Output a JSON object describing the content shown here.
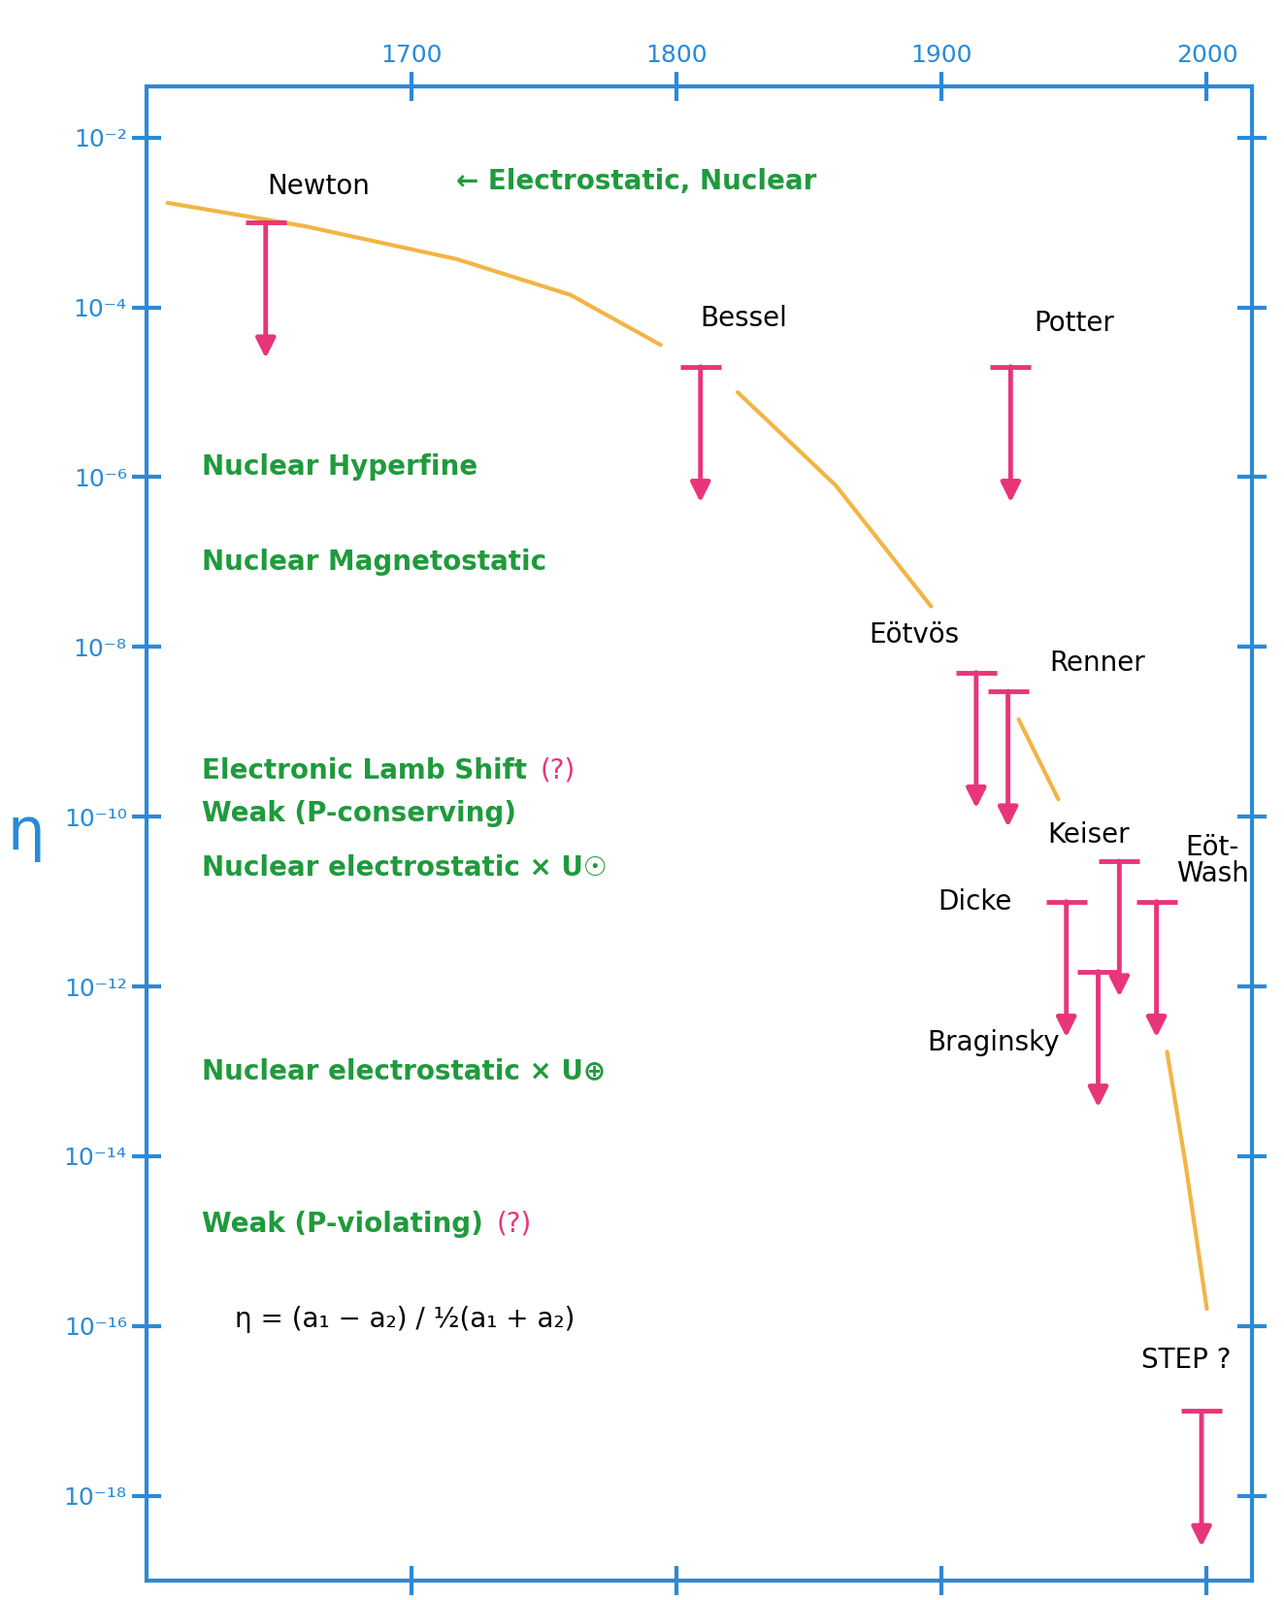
{
  "chart_data": {
    "type": "scatter",
    "marker": "upper_limit",
    "log": "y",
    "grid": false,
    "ylabel": "η",
    "xlim": [
      1600,
      2017
    ],
    "xticks": [
      1700,
      1800,
      1900,
      2000
    ],
    "ylim": [
      1e-19,
      0.04
    ],
    "yticks": [
      {
        "value": 0.01,
        "label": "10⁻²"
      },
      {
        "value": 0.0001,
        "label": "10⁻⁴"
      },
      {
        "value": 1e-06,
        "label": "10⁻⁶"
      },
      {
        "value": 1e-08,
        "label": "10⁻⁸"
      },
      {
        "value": 1e-10,
        "label": "10⁻¹⁰"
      },
      {
        "value": 1e-12,
        "label": "10⁻¹²"
      },
      {
        "value": 1e-14,
        "label": "10⁻¹⁴"
      },
      {
        "value": 1e-16,
        "label": "10⁻¹⁶"
      },
      {
        "value": 1e-18,
        "label": "10⁻¹⁸"
      }
    ],
    "color": "#e8357a",
    "experiments": [
      {
        "label": "Newton",
        "x": 1645,
        "value": 0.001
      },
      {
        "label": "Bessel",
        "x": 1809,
        "value": 2e-05
      },
      {
        "label": "Potter",
        "x": 1926,
        "value": 2e-05
      },
      {
        "label": "Eötvös",
        "x": 1913,
        "value": 5e-09
      },
      {
        "label": "Renner",
        "x": 1925,
        "value": 3e-09
      },
      {
        "label": "Keiser",
        "x": 1967,
        "value": 3e-11
      },
      {
        "label": "Eöt-\nWash",
        "x": 1981,
        "value": 1e-11
      },
      {
        "label": "Dicke",
        "x": 1947,
        "value": 1e-11
      },
      {
        "label": "Braginsky",
        "x": 1959,
        "value": 1.5e-12
      },
      {
        "label": "STEP ?",
        "x": 1998,
        "value": 1e-17
      }
    ],
    "trend": {
      "type": "line",
      "color": "#f2b544",
      "x": [
        1608,
        1660,
        1717,
        1760,
        1794,
        1800,
        1823,
        1860,
        1896,
        1910,
        1929,
        1944,
        1960,
        1985,
        1992,
        2000
      ],
      "values": [
        0.0017,
        0.0009,
        0.00037,
        0.00014,
        3.6e-05,
        null,
        1e-05,
        8e-07,
        3e-08,
        null,
        1.4e-09,
        1.6e-10,
        null,
        1.7e-13,
        8e-15,
        1.6e-16
      ]
    },
    "annotations_color": "#1f9a3c",
    "annotations": [
      {
        "text": "← Electrostatic, Nuclear",
        "y": 0.003
      },
      {
        "text": "Nuclear Hyperfine",
        "y": 1.3e-06
      },
      {
        "text": "Nuclear Magnetostatic",
        "y": 1e-07
      },
      {
        "text": "Electronic Lamb Shift",
        "y": 3.5e-10,
        "note": "(?)"
      },
      {
        "text": "Weak (P-conserving)",
        "y": 1.1e-10
      },
      {
        "text": "Nuclear electrostatic × U☉",
        "y": 2.5e-11
      },
      {
        "text": "Nuclear electrostatic × U⊕",
        "y": 1e-13
      },
      {
        "text": "Weak (P-violating)",
        "y": 1.6e-15,
        "note": "(?)"
      }
    ],
    "formula": "η = (a₁ − a₂) / ½(a₁ + a₂)"
  }
}
